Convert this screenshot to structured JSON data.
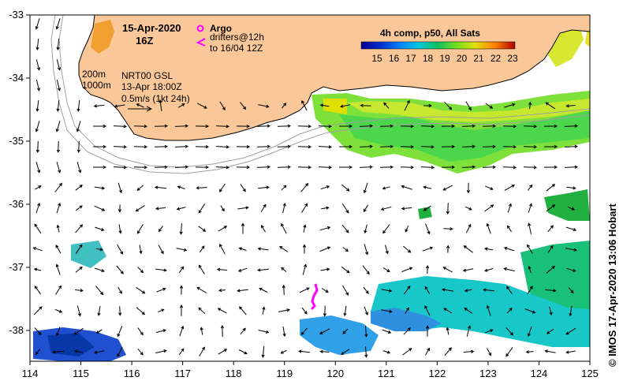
{
  "map": {
    "date_title": "15-Apr-2020",
    "time_title": "16Z",
    "argo_label": "Argo",
    "drifters_line1": "drifters@12h",
    "drifters_line2": "to 16/04 12Z",
    "isobath_200": "200m",
    "isobath_1000": "1000m",
    "model_name": "NRT00 GSL",
    "model_time": "13-Apr 18:00Z",
    "scale_label": "0.5m/s (1kt 24h)",
    "credit": "©  IMOS 17-Apr-2020 13:06 Hobart",
    "colorbar": {
      "title": "4h comp, p50, All Sats",
      "ticks": [
        "15",
        "16",
        "17",
        "18",
        "19",
        "20",
        "21",
        "22",
        "23"
      ]
    },
    "x_axis_ticks": [
      "114",
      "115",
      "116",
      "117",
      "118",
      "119",
      "120",
      "121",
      "122",
      "123",
      "124",
      "125"
    ],
    "y_axis_ticks": [
      "-33",
      "-34",
      "-35",
      "-36",
      "-37",
      "-38"
    ],
    "colors": {
      "land": "#fac898",
      "coastline": "#000000",
      "isobath": "#a0a0a0",
      "drifter": "#ff00ff",
      "argo": "#ff00ff"
    }
  }
}
